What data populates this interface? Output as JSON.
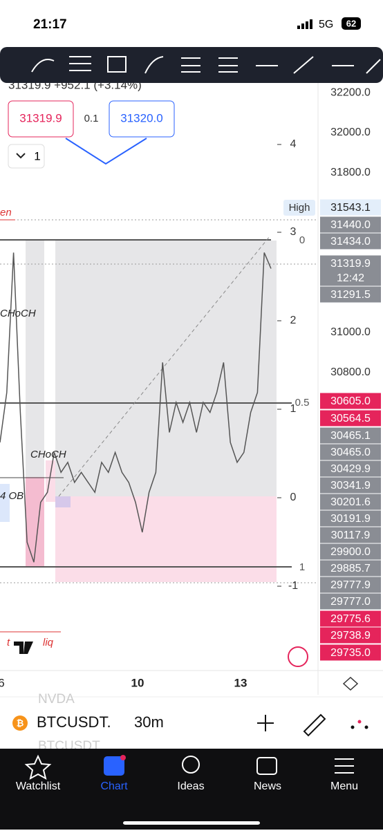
{
  "status": {
    "time": "21:17",
    "network": "5G",
    "battery": "62"
  },
  "legend": {
    "ohlc": "31319.9 +952.1 (+3.14%)",
    "bid": "31319.9",
    "spread": "0.1",
    "ask": "31320.0",
    "count": "1"
  },
  "price_axis": {
    "ticks": [
      {
        "value": 32200,
        "label": "32200.0"
      },
      {
        "value": 32000,
        "label": "32000.0"
      },
      {
        "value": 31800,
        "label": "31800.0"
      },
      {
        "value": 31000,
        "label": "31000.0"
      },
      {
        "value": 30800,
        "label": "30800.0"
      }
    ]
  },
  "high_label": "High",
  "tags": [
    {
      "label": "31543.1",
      "color": "#e3eefa"
    },
    {
      "label": "31440.0",
      "color": "#8a8d94"
    },
    {
      "label": "31434.0",
      "color": "#8a8d94"
    },
    {
      "label": "31319.9",
      "color": "#8a8d94",
      "sub": "12:42"
    },
    {
      "label": "31291.5",
      "color": "#8a8d94"
    },
    {
      "label": "30605.0",
      "color": "#e5245b"
    },
    {
      "label": "30564.5",
      "color": "#e5245b"
    },
    {
      "label": "30465.1",
      "color": "#8a8d94"
    },
    {
      "label": "30465.0",
      "color": "#8a8d94"
    },
    {
      "label": "30429.9",
      "color": "#8a8d94"
    },
    {
      "label": "30341.9",
      "color": "#8a8d94"
    },
    {
      "label": "30201.6",
      "color": "#8a8d94"
    },
    {
      "label": "30191.9",
      "color": "#8a8d94"
    },
    {
      "label": "30117.9",
      "color": "#8a8d94"
    },
    {
      "label": "29900.0",
      "color": "#8a8d94"
    },
    {
      "label": "29885.7",
      "color": "#8a8d94"
    },
    {
      "label": "29777.9",
      "color": "#8a8d94"
    },
    {
      "label": "29777.0",
      "color": "#8a8d94"
    },
    {
      "label": "29775.6",
      "color": "#e5245b"
    },
    {
      "label": "29738.9",
      "color": "#e5245b"
    },
    {
      "label": "29735.0",
      "color": "#e5245b"
    }
  ],
  "fib_left": [
    "4",
    "3",
    "2",
    "1",
    "0",
    "-1"
  ],
  "fib_right": [
    "0",
    "0.5",
    "1"
  ],
  "annotations": {
    "top_left": "en",
    "choch_1": "CHoCH",
    "choch_2": "CHoCH",
    "ob": "4 OB",
    "liq": "liq",
    "t": "t"
  },
  "chart": {
    "prices": [
      30450,
      30700,
      31400,
      30600,
      29950,
      29850,
      30150,
      30200,
      30400,
      30300,
      30350,
      30250,
      30300,
      30250,
      30200,
      30350,
      30300,
      30400,
      30300,
      30250,
      30150,
      30000,
      30200,
      30300,
      30850,
      30500,
      30650,
      30550,
      30650,
      30500,
      30650,
      30600,
      30700,
      30850,
      30450,
      30350,
      30400,
      30600,
      30700,
      31400,
      31319.9
    ]
  },
  "time_axis": [
    "6",
    "10",
    "13"
  ],
  "symbol": {
    "name": "BTCUSDT.",
    "interval": "30m",
    "ghost_top": "NVDA",
    "ghost_bottom": "BTCUSDT"
  },
  "tabs": [
    "Watchlist",
    "Chart",
    "Ideas",
    "News",
    "Menu"
  ]
}
